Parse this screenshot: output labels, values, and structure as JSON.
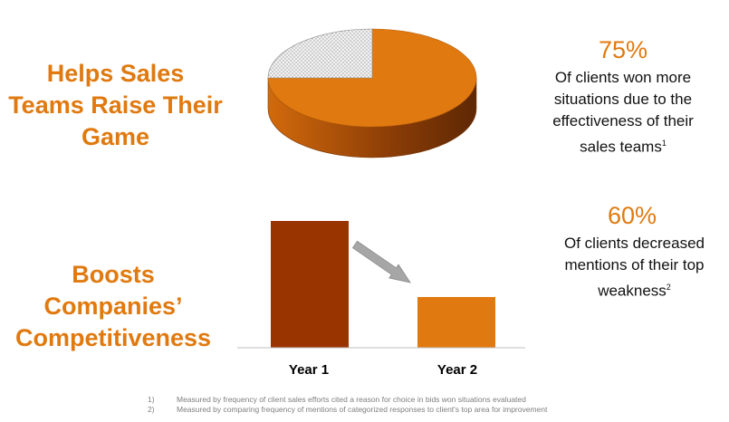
{
  "headlines": {
    "sales_line1": "Helps Sales",
    "sales_line2": "Teams Raise Their",
    "sales_line3": "Game",
    "comp_line1": "Boosts Companies’",
    "comp_line2": "Competitiveness"
  },
  "stats": [
    {
      "percent": "75%",
      "line1": "Of clients won more",
      "line2": "situations due to the",
      "line3": "effectiveness of their",
      "line4": "sales teams",
      "sup": "1"
    },
    {
      "percent": "60%",
      "line1": "Of clients decreased",
      "line2": "mentions of their top",
      "line3": "weakness",
      "sup": "2"
    }
  ],
  "footnotes": [
    {
      "num": "1)",
      "text": "Measured by frequency of client sales efforts cited a reason for choice in bids won situations evaluated"
    },
    {
      "num": "2)",
      "text": "Measured by comparing frequency of mentions of categorized responses to client's top area for improvement"
    }
  ],
  "colors": {
    "accent": "#e07a10",
    "pie_remainder": "#d9d9d9",
    "bar_year1": "#993300",
    "bar_year2": "#e07a10",
    "arrow": "#a6a6a6"
  },
  "chart_data": [
    {
      "type": "pie",
      "categories": [
        "won",
        "other"
      ],
      "values": [
        75,
        25
      ],
      "title": "",
      "xlabel": "",
      "ylabel": ""
    },
    {
      "type": "bar",
      "categories": [
        "Year 1",
        "Year 2"
      ],
      "values": [
        100,
        40
      ],
      "title": "",
      "xlabel": "",
      "ylabel": "",
      "ylim": [
        0,
        100
      ],
      "annotations": [
        "down-arrow"
      ],
      "grid": false
    }
  ]
}
